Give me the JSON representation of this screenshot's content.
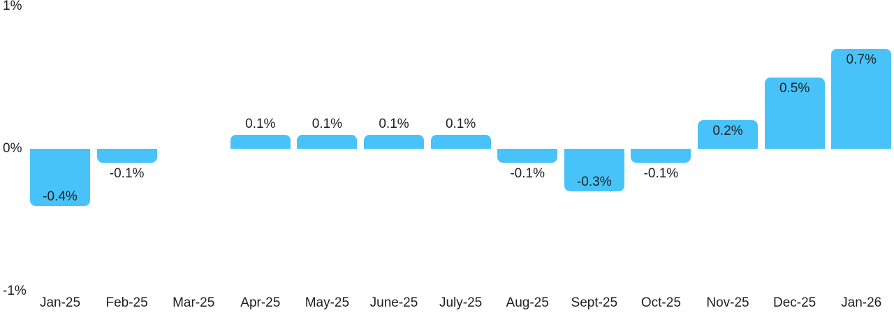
{
  "chart_data": {
    "type": "bar",
    "title": "",
    "xlabel": "",
    "ylabel": "",
    "categories": [
      "Jan-25",
      "Feb-25",
      "Mar-25",
      "Apr-25",
      "May-25",
      "June-25",
      "July-25",
      "Aug-25",
      "Sept-25",
      "Oct-25",
      "Nov-25",
      "Dec-25",
      "Jan-26"
    ],
    "values": [
      -0.4,
      -0.1,
      0,
      0.1,
      0.1,
      0.1,
      0.1,
      -0.1,
      -0.3,
      -0.1,
      0.2,
      0.5,
      0.7
    ],
    "bar_labels": [
      "-0.4%",
      "-0.1%",
      "",
      "0.1%",
      "0.1%",
      "0.1%",
      "0.1%",
      "-0.1%",
      "-0.3%",
      "-0.1%",
      "0.2%",
      "0.5%",
      "0.7%"
    ],
    "ylim": [
      -1,
      1
    ],
    "y_ticks": [
      {
        "value": 1,
        "label": "1%"
      },
      {
        "value": 0,
        "label": "0%"
      },
      {
        "value": -1,
        "label": "-1%"
      }
    ],
    "grid": false,
    "legend_position": "none",
    "bar_color": "#48C3FA",
    "text_color": "#1f1f1f",
    "background_color": "#ffffff"
  }
}
